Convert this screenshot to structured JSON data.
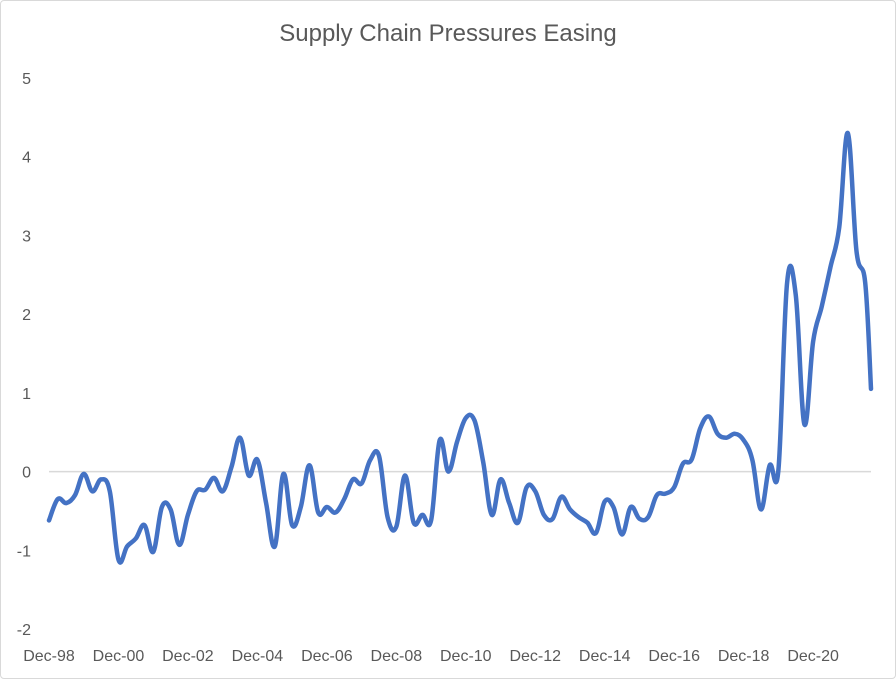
{
  "chart_data": {
    "type": "line",
    "title": "Supply Chain Pressures Easing",
    "xlabel": "",
    "ylabel": "",
    "ylim": [
      -2,
      5
    ],
    "y_ticks": [
      "5",
      "4",
      "3",
      "2",
      "1",
      "0",
      "-1",
      "-2"
    ],
    "x_tick_labels": [
      "Dec-98",
      "Dec-00",
      "Dec-02",
      "Dec-04",
      "Dec-06",
      "Dec-08",
      "Dec-10",
      "Dec-12",
      "Dec-14",
      "Dec-16",
      "Dec-18",
      "Dec-20"
    ],
    "x_range": [
      "Dec-98",
      "Jun-22"
    ],
    "grid": false,
    "zero_line": true,
    "line_color": "#4472c4",
    "axis_color": "#d9d9d9",
    "series": [
      {
        "points": [
          [
            "Dec-98",
            -0.62
          ],
          [
            "Mar-99",
            -0.35
          ],
          [
            "Jun-99",
            -0.4
          ],
          [
            "Sep-99",
            -0.3
          ],
          [
            "Dec-99",
            -0.03
          ],
          [
            "Mar-00",
            -0.25
          ],
          [
            "Jun-00",
            -0.1
          ],
          [
            "Sep-00",
            -0.25
          ],
          [
            "Dec-00",
            -1.12
          ],
          [
            "Mar-01",
            -0.95
          ],
          [
            "Jun-01",
            -0.85
          ],
          [
            "Sep-01",
            -0.68
          ],
          [
            "Dec-01",
            -1.02
          ],
          [
            "Mar-02",
            -0.45
          ],
          [
            "Jun-02",
            -0.48
          ],
          [
            "Sep-02",
            -0.93
          ],
          [
            "Dec-02",
            -0.55
          ],
          [
            "Mar-03",
            -0.25
          ],
          [
            "Jun-03",
            -0.23
          ],
          [
            "Sep-03",
            -0.08
          ],
          [
            "Dec-03",
            -0.25
          ],
          [
            "Mar-04",
            0.05
          ],
          [
            "Jun-04",
            0.43
          ],
          [
            "Sep-04",
            -0.05
          ],
          [
            "Dec-04",
            0.15
          ],
          [
            "Mar-05",
            -0.4
          ],
          [
            "Jun-05",
            -0.95
          ],
          [
            "Sep-05",
            -0.03
          ],
          [
            "Dec-05",
            -0.68
          ],
          [
            "Mar-06",
            -0.45
          ],
          [
            "Jun-06",
            0.08
          ],
          [
            "Sep-06",
            -0.52
          ],
          [
            "Dec-06",
            -0.45
          ],
          [
            "Mar-07",
            -0.52
          ],
          [
            "Jun-07",
            -0.35
          ],
          [
            "Sep-07",
            -0.1
          ],
          [
            "Dec-07",
            -0.15
          ],
          [
            "Mar-08",
            0.15
          ],
          [
            "Jun-08",
            0.2
          ],
          [
            "Sep-08",
            -0.58
          ],
          [
            "Dec-08",
            -0.7
          ],
          [
            "Mar-09",
            -0.05
          ],
          [
            "Jun-09",
            -0.65
          ],
          [
            "Sep-09",
            -0.55
          ],
          [
            "Dec-09",
            -0.62
          ],
          [
            "Mar-10",
            0.4
          ],
          [
            "Jun-10",
            0.0
          ],
          [
            "Sep-10",
            0.38
          ],
          [
            "Dec-10",
            0.68
          ],
          [
            "Mar-11",
            0.65
          ],
          [
            "Jun-11",
            0.12
          ],
          [
            "Sep-11",
            -0.55
          ],
          [
            "Dec-11",
            -0.1
          ],
          [
            "Mar-12",
            -0.4
          ],
          [
            "Jun-12",
            -0.65
          ],
          [
            "Sep-12",
            -0.2
          ],
          [
            "Dec-12",
            -0.25
          ],
          [
            "Mar-13",
            -0.55
          ],
          [
            "Jun-13",
            -0.6
          ],
          [
            "Sep-13",
            -0.32
          ],
          [
            "Dec-13",
            -0.48
          ],
          [
            "Mar-14",
            -0.58
          ],
          [
            "Jun-14",
            -0.65
          ],
          [
            "Sep-14",
            -0.78
          ],
          [
            "Dec-14",
            -0.38
          ],
          [
            "Mar-15",
            -0.45
          ],
          [
            "Jun-15",
            -0.8
          ],
          [
            "Sep-15",
            -0.45
          ],
          [
            "Dec-15",
            -0.6
          ],
          [
            "Mar-16",
            -0.58
          ],
          [
            "Jun-16",
            -0.3
          ],
          [
            "Sep-16",
            -0.28
          ],
          [
            "Dec-16",
            -0.2
          ],
          [
            "Mar-17",
            0.1
          ],
          [
            "Jun-17",
            0.15
          ],
          [
            "Sep-17",
            0.55
          ],
          [
            "Dec-17",
            0.7
          ],
          [
            "Mar-18",
            0.48
          ],
          [
            "Jun-18",
            0.43
          ],
          [
            "Sep-18",
            0.48
          ],
          [
            "Dec-18",
            0.4
          ],
          [
            "Mar-19",
            0.15
          ],
          [
            "Jun-19",
            -0.48
          ],
          [
            "Sep-19",
            0.08
          ],
          [
            "Dec-19",
            0.02
          ],
          [
            "Mar-20",
            2.4
          ],
          [
            "Jun-20",
            2.25
          ],
          [
            "Sep-20",
            0.6
          ],
          [
            "Dec-20",
            1.65
          ],
          [
            "Mar-21",
            2.1
          ],
          [
            "Jun-21",
            2.6
          ],
          [
            "Sep-21",
            3.1
          ],
          [
            "Dec-21",
            4.3
          ],
          [
            "Mar-22",
            2.8
          ],
          [
            "Jun-22",
            2.4
          ],
          [
            "Aug-22",
            1.05
          ]
        ]
      }
    ]
  }
}
